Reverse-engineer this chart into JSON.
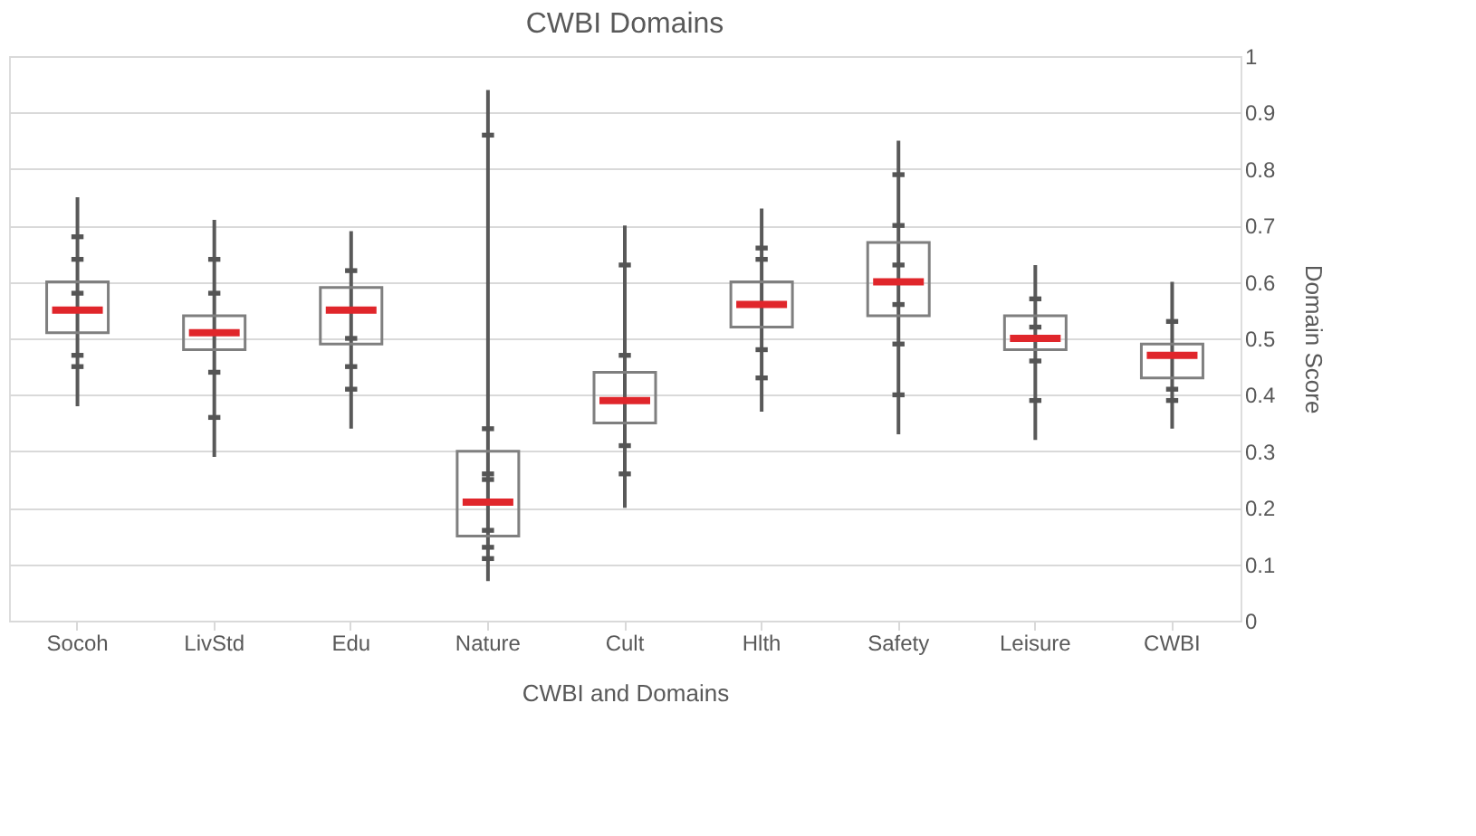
{
  "chart_data": {
    "type": "box",
    "title": "CWBI Domains",
    "xlabel": "CWBI and Domains",
    "ylabel": "Domain Score",
    "categories": [
      "Socoh",
      "LivStd",
      "Edu",
      "Nature",
      "Cult",
      "Hlth",
      "Safety",
      "Leisure",
      "CWBI"
    ],
    "boxes": [
      {
        "low": 0.38,
        "q1": 0.51,
        "median": 0.55,
        "q3": 0.6,
        "high": 0.75
      },
      {
        "low": 0.29,
        "q1": 0.48,
        "median": 0.51,
        "q3": 0.54,
        "high": 0.71
      },
      {
        "low": 0.34,
        "q1": 0.49,
        "median": 0.55,
        "q3": 0.59,
        "high": 0.69
      },
      {
        "low": 0.07,
        "q1": 0.15,
        "median": 0.21,
        "q3": 0.3,
        "high": 0.94
      },
      {
        "low": 0.2,
        "q1": 0.35,
        "median": 0.39,
        "q3": 0.44,
        "high": 0.7
      },
      {
        "low": 0.37,
        "q1": 0.52,
        "median": 0.56,
        "q3": 0.6,
        "high": 0.73
      },
      {
        "low": 0.33,
        "q1": 0.54,
        "median": 0.6,
        "q3": 0.67,
        "high": 0.85
      },
      {
        "low": 0.32,
        "q1": 0.48,
        "median": 0.5,
        "q3": 0.54,
        "high": 0.63
      },
      {
        "low": 0.34,
        "q1": 0.43,
        "median": 0.47,
        "q3": 0.49,
        "high": 0.6
      }
    ],
    "series": [
      {
        "type": "scatter",
        "color": "#555555",
        "x": [
          "Socoh",
          "Socoh",
          "Socoh",
          "Socoh",
          "Socoh",
          "LivStd",
          "LivStd",
          "LivStd",
          "LivStd",
          "Edu",
          "Edu",
          "Edu",
          "Edu",
          "Nature",
          "Nature",
          "Nature",
          "Nature",
          "Nature",
          "Nature",
          "Nature",
          "Cult",
          "Cult",
          "Cult",
          "Cult",
          "Hlth",
          "Hlth",
          "Hlth",
          "Hlth",
          "Safety",
          "Safety",
          "Safety",
          "Safety",
          "Safety",
          "Safety",
          "Leisure",
          "Leisure",
          "Leisure",
          "Leisure",
          "CWBI",
          "CWBI",
          "CWBI"
        ],
        "values": [
          0.68,
          0.64,
          0.58,
          0.47,
          0.45,
          0.64,
          0.58,
          0.44,
          0.36,
          0.62,
          0.5,
          0.45,
          0.41,
          0.86,
          0.34,
          0.26,
          0.25,
          0.16,
          0.13,
          0.11,
          0.63,
          0.47,
          0.31,
          0.26,
          0.66,
          0.64,
          0.48,
          0.43,
          0.79,
          0.7,
          0.63,
          0.56,
          0.49,
          0.4,
          0.57,
          0.52,
          0.46,
          0.39,
          0.53,
          0.41,
          0.39
        ]
      }
    ],
    "color": "#7f7f7f",
    "ylim": [
      0,
      1
    ],
    "yticks": [
      0,
      0.1,
      0.2,
      0.3,
      0.4,
      0.5,
      0.6,
      0.7,
      0.8,
      0.9,
      1
    ],
    "grid": "y"
  }
}
